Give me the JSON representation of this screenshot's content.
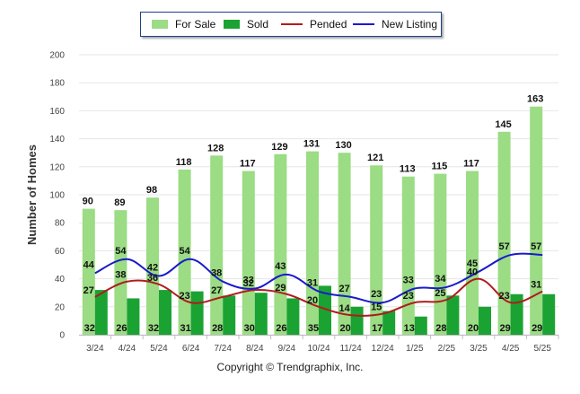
{
  "legend": {
    "for_sale": "For Sale",
    "sold": "Sold",
    "pended": "Pended",
    "new_listing": "New Listing"
  },
  "footer": "Copyright © Trendgraphix, Inc.",
  "colors": {
    "for_sale": "#9bdc84",
    "sold": "#1aa332",
    "pended": "#b01c1c",
    "new_listing": "#1a1acc",
    "grid": "#e6e6e6",
    "legend_border": "#1f3f8f"
  },
  "chart_data": {
    "type": "bar",
    "ylabel": "Number of Homes",
    "ylim": [
      0,
      200
    ],
    "yticks": [
      0,
      20,
      40,
      60,
      80,
      100,
      120,
      140,
      160,
      180,
      200
    ],
    "grid": true,
    "legend_position": "top-center",
    "categories": [
      "3/24",
      "4/24",
      "5/24",
      "6/24",
      "7/24",
      "8/24",
      "9/24",
      "10/24",
      "11/24",
      "12/24",
      "1/25",
      "2/25",
      "3/25",
      "4/25",
      "5/25"
    ],
    "series": [
      {
        "name": "For Sale",
        "kind": "bar",
        "values": [
          90,
          89,
          98,
          118,
          128,
          117,
          129,
          131,
          130,
          121,
          113,
          115,
          117,
          145,
          163
        ]
      },
      {
        "name": "Sold",
        "kind": "bar",
        "values": [
          32,
          26,
          32,
          31,
          28,
          30,
          26,
          35,
          20,
          17,
          13,
          28,
          20,
          29,
          29
        ]
      },
      {
        "name": "Pended",
        "kind": "line",
        "values": [
          27,
          38,
          36,
          23,
          27,
          32,
          29,
          20,
          14,
          15,
          23,
          25,
          40,
          23,
          31
        ]
      },
      {
        "name": "New Listing",
        "kind": "line",
        "values": [
          44,
          54,
          42,
          54,
          38,
          33,
          43,
          31,
          27,
          23,
          33,
          34,
          45,
          57,
          57
        ]
      }
    ]
  }
}
